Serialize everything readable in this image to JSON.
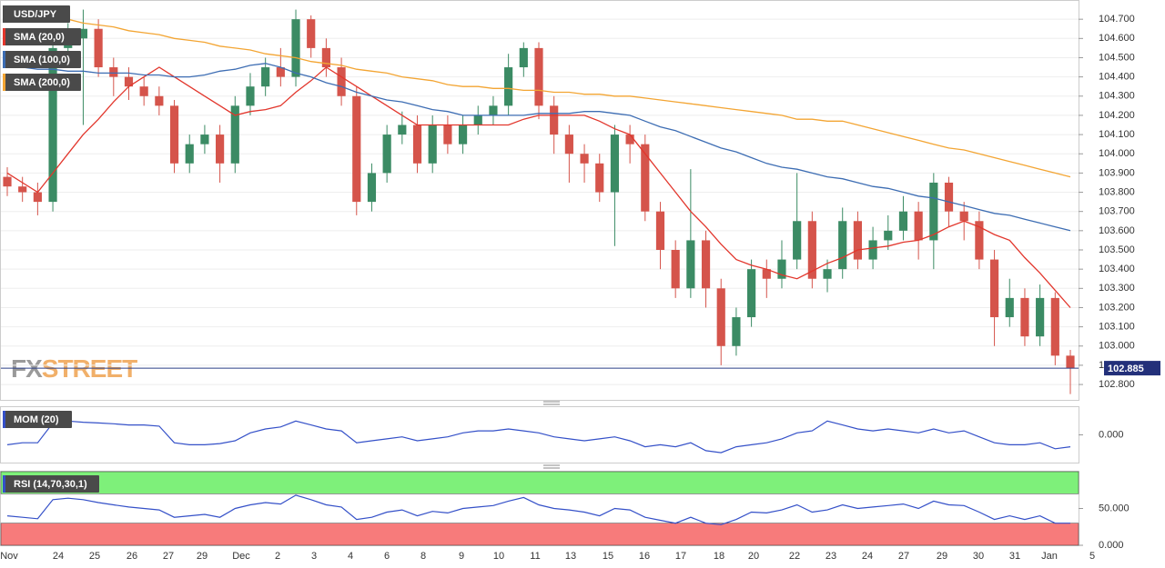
{
  "watermark": [
    "FX",
    "STREET"
  ],
  "x_labels": [
    "Nov",
    "24",
    "25",
    "26",
    "27",
    "29",
    "Dec",
    "2",
    "3",
    "4",
    "6",
    "8",
    "9",
    "10",
    "11",
    "13",
    "15",
    "16",
    "17",
    "18",
    "20",
    "22",
    "23",
    "24",
    "27",
    "29",
    "30",
    "31",
    "Jan",
    "5"
  ],
  "chart_data": [
    {
      "type": "candlestick",
      "title": "USD/JPY",
      "up_color": "#3b8b64",
      "down_color": "#d5544b",
      "ylim": [
        102.72,
        104.8
      ],
      "yticks": [
        {
          "value": 102.8,
          "label": "102.800"
        },
        {
          "value": 102.9,
          "label": "102.900"
        },
        {
          "value": 103.0,
          "label": "103.000"
        },
        {
          "value": 103.1,
          "label": "103.100"
        },
        {
          "value": 103.2,
          "label": "103.200"
        },
        {
          "value": 103.3,
          "label": "103.300"
        },
        {
          "value": 103.4,
          "label": "103.400"
        },
        {
          "value": 103.5,
          "label": "103.500"
        },
        {
          "value": 103.6,
          "label": "103.600"
        },
        {
          "value": 103.7,
          "label": "103.700"
        },
        {
          "value": 103.8,
          "label": "103.800"
        },
        {
          "value": 103.9,
          "label": "103.900"
        },
        {
          "value": 104.0,
          "label": "104.000"
        },
        {
          "value": 104.1,
          "label": "104.100"
        },
        {
          "value": 104.2,
          "label": "104.200"
        },
        {
          "value": 104.3,
          "label": "104.300"
        },
        {
          "value": 104.4,
          "label": "104.400"
        },
        {
          "value": 104.5,
          "label": "104.500"
        },
        {
          "value": 104.6,
          "label": "104.600"
        },
        {
          "value": 104.7,
          "label": "104.700"
        }
      ],
      "grid": true,
      "open": [
        103.88,
        103.83,
        103.8,
        103.75,
        104.55,
        104.6,
        104.65,
        104.45,
        104.4,
        104.35,
        104.3,
        104.25,
        103.95,
        104.05,
        104.1,
        103.95,
        104.25,
        104.35,
        104.45,
        104.4,
        104.7,
        104.55,
        104.45,
        104.3,
        103.75,
        103.9,
        104.1,
        104.15,
        103.95,
        104.15,
        104.05,
        104.15,
        104.2,
        104.25,
        104.45,
        104.55,
        104.25,
        104.1,
        104.0,
        103.95,
        103.8,
        104.1,
        104.05,
        103.7,
        103.5,
        103.3,
        103.55,
        103.3,
        103.0,
        103.15,
        103.4,
        103.35,
        103.45,
        103.65,
        103.35,
        103.4,
        103.65,
        103.45,
        103.55,
        103.6,
        103.7,
        103.55,
        103.85,
        103.7,
        103.65,
        103.45,
        103.15,
        103.25,
        103.05,
        103.25,
        102.95
      ],
      "high": [
        103.93,
        103.88,
        103.85,
        104.6,
        104.68,
        104.75,
        104.7,
        104.5,
        104.45,
        104.4,
        104.35,
        104.28,
        104.1,
        104.15,
        104.15,
        104.3,
        104.42,
        104.5,
        104.55,
        104.75,
        104.72,
        104.6,
        104.5,
        104.35,
        103.95,
        104.15,
        104.22,
        104.2,
        104.2,
        104.2,
        104.2,
        104.25,
        104.3,
        104.52,
        104.58,
        104.58,
        104.3,
        104.15,
        104.05,
        104.0,
        104.15,
        104.15,
        104.1,
        103.75,
        103.55,
        103.92,
        103.6,
        103.35,
        103.2,
        103.45,
        103.45,
        103.55,
        103.9,
        103.7,
        103.45,
        103.72,
        103.7,
        103.62,
        103.68,
        103.78,
        103.75,
        103.9,
        103.88,
        103.75,
        103.7,
        103.5,
        103.35,
        103.3,
        103.32,
        103.28,
        102.98
      ],
      "low": [
        103.78,
        103.75,
        103.68,
        103.7,
        104.45,
        104.15,
        104.4,
        104.3,
        104.28,
        104.25,
        104.2,
        103.9,
        103.9,
        104.0,
        103.85,
        103.9,
        104.2,
        104.3,
        104.35,
        104.35,
        104.5,
        104.4,
        104.25,
        103.68,
        103.7,
        103.85,
        104.05,
        103.9,
        103.9,
        104.0,
        104.0,
        104.1,
        104.15,
        104.2,
        104.4,
        104.18,
        104.0,
        103.85,
        103.85,
        103.75,
        103.52,
        103.95,
        103.65,
        103.4,
        103.25,
        103.25,
        103.2,
        102.9,
        102.95,
        103.1,
        103.25,
        103.3,
        103.4,
        103.3,
        103.28,
        103.35,
        103.4,
        103.4,
        103.5,
        103.55,
        103.45,
        103.4,
        103.62,
        103.55,
        103.4,
        103.0,
        103.1,
        103.0,
        103.0,
        102.9,
        102.75
      ],
      "close": [
        103.83,
        103.8,
        103.75,
        104.55,
        104.6,
        104.65,
        104.45,
        104.4,
        104.35,
        104.3,
        104.25,
        103.95,
        104.05,
        104.1,
        103.95,
        104.25,
        104.35,
        104.45,
        104.4,
        104.7,
        104.55,
        104.45,
        104.3,
        103.75,
        103.9,
        104.1,
        104.15,
        103.95,
        104.15,
        104.05,
        104.15,
        104.2,
        104.25,
        104.45,
        104.55,
        104.25,
        104.1,
        104.0,
        103.95,
        103.8,
        104.1,
        104.05,
        103.7,
        103.5,
        103.3,
        103.55,
        103.3,
        103.0,
        103.15,
        103.4,
        103.35,
        103.45,
        103.65,
        103.35,
        103.4,
        103.65,
        103.45,
        103.55,
        103.6,
        103.7,
        103.55,
        103.85,
        103.7,
        103.65,
        103.45,
        103.15,
        103.25,
        103.05,
        103.25,
        102.95,
        102.885
      ],
      "series": [
        {
          "name": "SMA (20,0)",
          "color": "#e2362c",
          "values": [
            103.9,
            103.85,
            103.8,
            103.9,
            104.0,
            104.1,
            104.18,
            104.27,
            104.35,
            104.4,
            104.45,
            104.4,
            104.35,
            104.3,
            104.25,
            104.2,
            104.22,
            104.23,
            104.25,
            104.32,
            104.38,
            104.45,
            104.4,
            104.35,
            104.3,
            104.25,
            104.2,
            104.15,
            104.15,
            104.15,
            104.15,
            104.15,
            104.15,
            104.15,
            104.18,
            104.2,
            104.2,
            104.2,
            104.2,
            104.17,
            104.13,
            104.1,
            104.0,
            103.9,
            103.8,
            103.7,
            103.62,
            103.53,
            103.45,
            103.42,
            103.4,
            103.37,
            103.35,
            103.39,
            103.43,
            103.46,
            103.5,
            103.51,
            103.52,
            103.54,
            103.55,
            103.58,
            103.62,
            103.65,
            103.62,
            103.58,
            103.55,
            103.46,
            103.38,
            103.29,
            103.2
          ]
        },
        {
          "name": "SMA (100,0)",
          "color": "#3d6db3",
          "values": [
            104.45,
            104.45,
            104.44,
            104.44,
            104.43,
            104.43,
            104.42,
            104.42,
            104.42,
            104.41,
            104.41,
            104.4,
            104.4,
            104.41,
            104.43,
            104.44,
            104.46,
            104.47,
            104.45,
            104.42,
            104.4,
            104.37,
            104.35,
            104.32,
            104.3,
            104.28,
            104.27,
            104.25,
            104.23,
            104.22,
            104.2,
            104.2,
            104.2,
            104.2,
            104.2,
            104.21,
            104.21,
            104.21,
            104.22,
            104.22,
            104.21,
            104.2,
            104.17,
            104.14,
            104.12,
            104.09,
            104.06,
            104.03,
            104.01,
            103.98,
            103.95,
            103.93,
            103.92,
            103.9,
            103.88,
            103.87,
            103.85,
            103.83,
            103.82,
            103.8,
            103.78,
            103.77,
            103.75,
            103.73,
            103.71,
            103.69,
            103.68,
            103.66,
            103.64,
            103.62,
            103.6
          ]
        },
        {
          "name": "SMA (200,0)",
          "color": "#f3a533",
          "values": [
            104.75,
            104.74,
            104.72,
            104.71,
            104.7,
            104.68,
            104.67,
            104.66,
            104.64,
            104.63,
            104.62,
            104.6,
            104.59,
            104.58,
            104.56,
            104.55,
            104.54,
            104.52,
            104.51,
            104.5,
            104.48,
            104.47,
            104.46,
            104.44,
            104.43,
            104.42,
            104.4,
            104.39,
            104.38,
            104.36,
            104.35,
            104.35,
            104.34,
            104.34,
            104.33,
            104.33,
            104.32,
            104.32,
            104.31,
            104.31,
            104.3,
            104.3,
            104.29,
            104.28,
            104.27,
            104.26,
            104.25,
            104.24,
            104.23,
            104.22,
            104.21,
            104.2,
            104.18,
            104.18,
            104.17,
            104.17,
            104.15,
            104.13,
            104.11,
            104.09,
            104.07,
            104.05,
            104.03,
            104.02,
            104.0,
            103.98,
            103.96,
            103.94,
            103.92,
            103.9,
            103.88
          ]
        }
      ]
    },
    {
      "type": "line",
      "title": "MOM (20)",
      "color": "#3450c8",
      "ylim": [
        -0.7,
        0.7
      ],
      "yticks": [
        {
          "value": 0,
          "label": "0.000"
        }
      ],
      "values": [
        -0.25,
        -0.2,
        -0.2,
        0.3,
        0.35,
        0.32,
        0.3,
        0.28,
        0.25,
        0.25,
        0.22,
        -0.2,
        -0.25,
        -0.25,
        -0.22,
        -0.15,
        0.05,
        0.15,
        0.2,
        0.35,
        0.25,
        0.15,
        0.1,
        -0.2,
        -0.15,
        -0.1,
        -0.05,
        -0.15,
        -0.1,
        -0.05,
        0.05,
        0.1,
        0.1,
        0.15,
        0.1,
        0.05,
        -0.05,
        -0.1,
        -0.15,
        -0.1,
        -0.05,
        -0.15,
        -0.3,
        -0.25,
        -0.3,
        -0.2,
        -0.4,
        -0.45,
        -0.3,
        -0.25,
        -0.2,
        -0.1,
        0.05,
        0.1,
        0.35,
        0.25,
        0.15,
        0.1,
        0.15,
        0.1,
        0.05,
        0.15,
        0.05,
        0.1,
        -0.05,
        -0.2,
        -0.25,
        -0.25,
        -0.2,
        -0.35,
        -0.3
      ]
    },
    {
      "type": "line",
      "title": "RSI (14,70,30,1)",
      "color": "#3450c8",
      "ylim": [
        0,
        100
      ],
      "yticks": [
        {
          "value": 50,
          "label": "50.000"
        },
        {
          "value": 0,
          "label": "0.000"
        }
      ],
      "overbought": 70,
      "oversold": 30,
      "overbought_color": "#7ef07a",
      "oversold_color": "#f77b7b",
      "values": [
        40,
        38,
        36,
        62,
        64,
        62,
        58,
        55,
        52,
        50,
        48,
        38,
        40,
        42,
        38,
        50,
        55,
        58,
        56,
        68,
        62,
        55,
        52,
        35,
        38,
        45,
        48,
        40,
        46,
        44,
        50,
        52,
        54,
        60,
        65,
        55,
        50,
        48,
        45,
        40,
        50,
        48,
        38,
        34,
        30,
        38,
        30,
        28,
        35,
        45,
        44,
        48,
        55,
        45,
        48,
        55,
        50,
        52,
        54,
        56,
        50,
        60,
        55,
        54,
        45,
        35,
        40,
        35,
        40,
        30,
        30
      ]
    }
  ]
}
